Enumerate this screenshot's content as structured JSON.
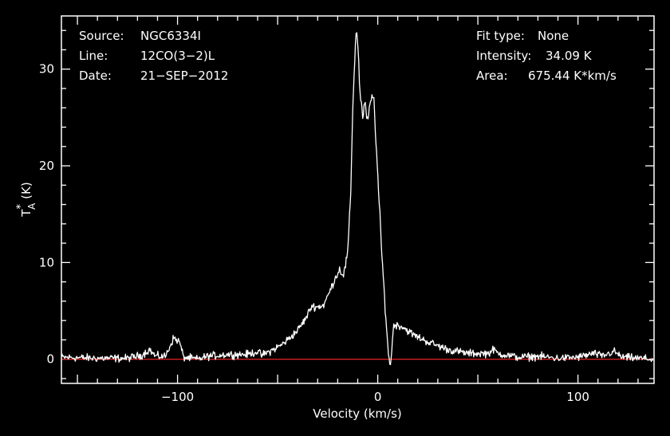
{
  "chart_data": {
    "type": "line",
    "xlabel": "Velocity (km/s)",
    "ylabel_main": "T",
    "ylabel_sup": "*",
    "ylabel_sub": "A",
    "ylabel_unit": "(K)",
    "xlim": [
      -158,
      138
    ],
    "ylim": [
      -2.5,
      35.5
    ],
    "xticks": [
      -100,
      0,
      100
    ],
    "xtick_labels": [
      "−100",
      "0",
      "100"
    ],
    "yticks": [
      0,
      10,
      20,
      30
    ],
    "ytick_labels": [
      "0",
      "10",
      "20",
      "30"
    ],
    "baseline": 0,
    "colors": {
      "background": "#000000",
      "frame": "#ffffff",
      "spectrum": "#ffffff",
      "baseline": "#d62020"
    },
    "info_left": [
      {
        "key": "Source:",
        "value": "NGC6334I"
      },
      {
        "key": "Line:",
        "value": "12CO(3−2)L"
      },
      {
        "key": "Date:",
        "value": "21−SEP−2012"
      }
    ],
    "info_right": [
      {
        "key": "Fit type:",
        "value": "None"
      },
      {
        "key": "Intensity:",
        "value": "34.09 K"
      },
      {
        "key": "Area:",
        "value": "675.44 K*km/s"
      }
    ],
    "series": [
      {
        "values": [
          [
            -158,
            0.2
          ],
          [
            -140,
            0.1
          ],
          [
            -125,
            0.1
          ],
          [
            -118,
            0.4
          ],
          [
            -114,
            1.0
          ],
          [
            -111,
            0.3
          ],
          [
            -106,
            0.3
          ],
          [
            -102,
            2.2
          ],
          [
            -99,
            1.8
          ],
          [
            -97,
            0.2
          ],
          [
            -90,
            0.0
          ],
          [
            -85,
            0.3
          ],
          [
            -75,
            0.5
          ],
          [
            -65,
            0.5
          ],
          [
            -60,
            0.8
          ],
          [
            -58,
            0.4
          ],
          [
            -53,
            0.9
          ],
          [
            -48,
            1.5
          ],
          [
            -44,
            2.2
          ],
          [
            -40,
            3.0
          ],
          [
            -36,
            4.2
          ],
          [
            -33,
            5.5
          ],
          [
            -30,
            5.4
          ],
          [
            -27,
            5.6
          ],
          [
            -24,
            7.0
          ],
          [
            -21,
            8.5
          ],
          [
            -19,
            9.3
          ],
          [
            -17,
            8.7
          ],
          [
            -15,
            11.0
          ],
          [
            -13.5,
            17.0
          ],
          [
            -12.5,
            26.0
          ],
          [
            -11.5,
            31.0
          ],
          [
            -10.8,
            34.0
          ],
          [
            -10,
            33.0
          ],
          [
            -9,
            28.0
          ],
          [
            -7.5,
            25.0
          ],
          [
            -6.5,
            26.5
          ],
          [
            -5,
            24.5
          ],
          [
            -3.5,
            26.8
          ],
          [
            -2,
            27.2
          ],
          [
            -1,
            23.0
          ],
          [
            0.5,
            17.0
          ],
          [
            2,
            11.0
          ],
          [
            3.5,
            6.0
          ],
          [
            4.5,
            3.0
          ],
          [
            5.5,
            0.0
          ],
          [
            6.3,
            -0.6
          ],
          [
            7.0,
            1.0
          ],
          [
            8.0,
            3.6
          ],
          [
            12,
            3.4
          ],
          [
            18,
            2.5
          ],
          [
            25,
            1.8
          ],
          [
            35,
            1.0
          ],
          [
            45,
            0.6
          ],
          [
            55,
            0.6
          ],
          [
            58,
            1.0
          ],
          [
            60,
            0.6
          ],
          [
            70,
            0.2
          ],
          [
            80,
            0.3
          ],
          [
            90,
            0.1
          ],
          [
            100,
            0.2
          ],
          [
            108,
            0.6
          ],
          [
            112,
            0.3
          ],
          [
            118,
            0.8
          ],
          [
            122,
            0.2
          ],
          [
            130,
            0.1
          ],
          [
            138,
            0.0
          ]
        ]
      }
    ]
  }
}
